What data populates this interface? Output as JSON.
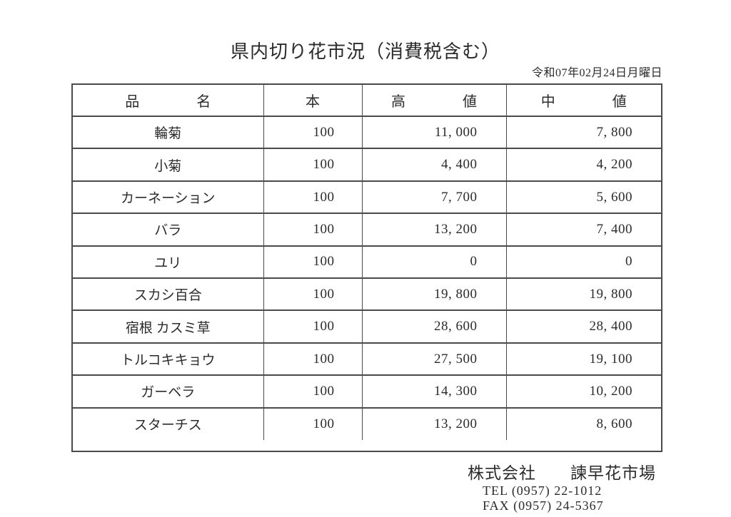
{
  "page": {
    "title": "県内切り花市況（消費税含む）",
    "date": "令和07年02月24日月曜日"
  },
  "table": {
    "columns": [
      "品　　　　名",
      "本",
      "高　　　　値",
      "中　　　　値"
    ],
    "rows": [
      {
        "name": "輪菊",
        "qty": "100",
        "high": "11, 000",
        "mid": "7, 800"
      },
      {
        "name": "小菊",
        "qty": "100",
        "high": "4, 400",
        "mid": "4, 200"
      },
      {
        "name": "カーネーション",
        "qty": "100",
        "high": "7, 700",
        "mid": "5, 600"
      },
      {
        "name": "バラ",
        "qty": "100",
        "high": "13, 200",
        "mid": "7, 400"
      },
      {
        "name": "ユリ",
        "qty": "100",
        "high": "0",
        "mid": "0"
      },
      {
        "name": "スカシ百合",
        "qty": "100",
        "high": "19, 800",
        "mid": "19, 800"
      },
      {
        "name": "宿根 カスミ草",
        "qty": "100",
        "high": "28, 600",
        "mid": "28, 400"
      },
      {
        "name": "トルコキキョウ",
        "qty": "100",
        "high": "27, 500",
        "mid": "19, 100"
      },
      {
        "name": "ガーベラ",
        "qty": "100",
        "high": "14, 300",
        "mid": "10, 200"
      },
      {
        "name": "スターチス",
        "qty": "100",
        "high": "13, 200",
        "mid": "8, 600"
      }
    ]
  },
  "footer": {
    "company": "株式会社　　諫早花市場",
    "tel": "TEL (0957) 22-1012",
    "fax": "FAX (0957) 24-5367"
  },
  "colors": {
    "text": "#2b2b2b",
    "border": "#4a4a4a",
    "background": "#ffffff"
  }
}
